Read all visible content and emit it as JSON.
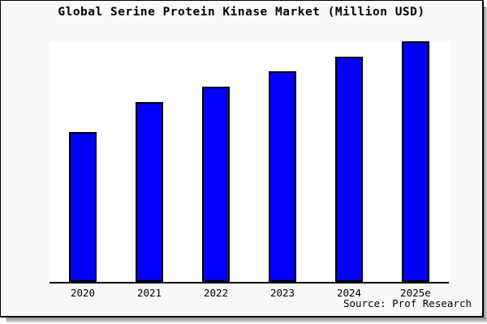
{
  "page": {
    "background": "#ffffff",
    "canvas_bg": "#f8f8f8",
    "plot_bg": "#ffffff",
    "border_color": "#000000",
    "shadow_color": "#8f8f8f"
  },
  "header": {
    "title": "Global Serine Protein Kinase Market (Million USD)"
  },
  "footer": {
    "source_label": "Source: Prof Research"
  },
  "chart_data": {
    "type": "bar",
    "title": "Global Serine Protein Kinase Market (Million USD)",
    "categories": [
      "2020",
      "2021",
      "2022",
      "2023",
      "2024",
      "2025e"
    ],
    "values": [
      62.4,
      74.9,
      81.3,
      87.6,
      93.6,
      100
    ],
    "values_unit": "relative bar height, percent of tallest bar (no numeric y-axis labels are shown in the image)",
    "xlabel": "",
    "ylabel": "",
    "ylim": [
      0,
      100
    ],
    "gridlines": false,
    "legend": "none",
    "y_axis_tick_labels": [],
    "bar_color": "#0101fb",
    "bar_edge_color": "#000000",
    "annotations": [
      "Source: Prof Research"
    ]
  }
}
